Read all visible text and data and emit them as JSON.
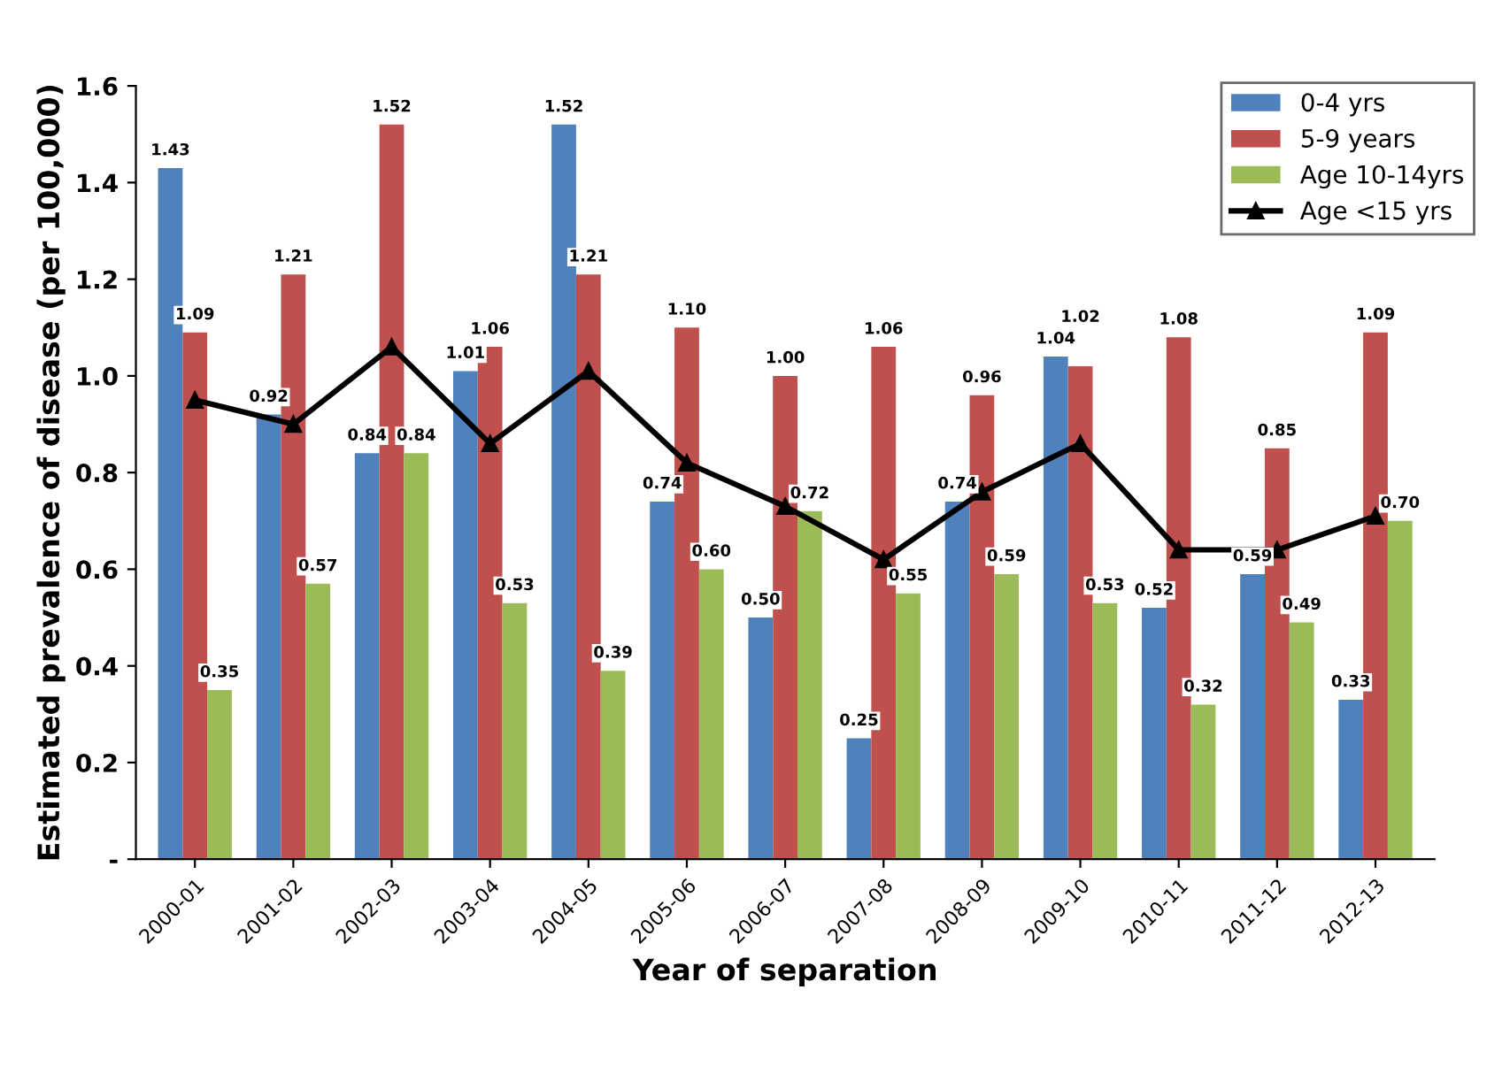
{
  "chart_data": {
    "type": "bar",
    "xlabel": "Year of separation",
    "ylabel": "Estimated prevalence of disease (per 100,000)",
    "categories": [
      "2000-01",
      "2001-02",
      "2002-03",
      "2003-04",
      "2004-05",
      "2005-06",
      "2006-07",
      "2007-08",
      "2008-09",
      "2009-10",
      "2010-11",
      "2011-12",
      "2012-13"
    ],
    "series": [
      {
        "name": "0-4 yrs",
        "color": "#4f81bd",
        "values": [
          1.43,
          0.92,
          0.84,
          1.01,
          1.52,
          0.74,
          0.5,
          0.25,
          0.74,
          1.04,
          0.52,
          0.59,
          0.33
        ],
        "value_labels": [
          "1.43",
          "0.92",
          "0.84",
          "1.01",
          "1.52",
          "0.74",
          "0.50",
          "0.25",
          "0.74",
          "1.04",
          "0.52",
          "0.59",
          "0.33"
        ]
      },
      {
        "name": "5-9 years",
        "color": "#c0504d",
        "values": [
          1.09,
          1.21,
          1.52,
          1.06,
          1.21,
          1.1,
          1.0,
          1.06,
          0.96,
          1.02,
          1.08,
          0.85,
          1.09
        ],
        "value_labels": [
          "1.09",
          "1.21",
          "1.52",
          "1.06",
          "1.21",
          "1.10",
          "1.00",
          "1.06",
          "0.96",
          "1.02",
          "1.08",
          "0.85",
          "1.09"
        ]
      },
      {
        "name": "Age 10-14yrs",
        "color": "#9bbb59",
        "values": [
          0.35,
          0.57,
          0.84,
          0.53,
          0.39,
          0.6,
          0.72,
          0.55,
          0.59,
          0.53,
          0.32,
          0.49,
          0.7
        ],
        "value_labels": [
          "0.35",
          "0.57",
          "0.84",
          "0.53",
          "0.39",
          "0.60",
          "0.72",
          "0.55",
          "0.59",
          "0.53",
          "0.32",
          "0.49",
          "0.70"
        ]
      },
      {
        "name": "Age <15 yrs",
        "type": "line",
        "color": "#000000",
        "marker": "triangle",
        "values": [
          0.95,
          0.9,
          1.06,
          0.86,
          1.01,
          0.82,
          0.73,
          0.62,
          0.76,
          0.86,
          0.64,
          0.64,
          0.71
        ]
      }
    ],
    "ylim": [
      0,
      1.6
    ],
    "yticks": [
      {
        "value": 0,
        "label": "-"
      },
      0.2,
      0.4,
      0.6,
      0.8,
      {
        "value": 1.0,
        "label": "1.0"
      },
      1.2,
      1.4,
      1.6
    ],
    "grid": false,
    "legend": "top right"
  }
}
